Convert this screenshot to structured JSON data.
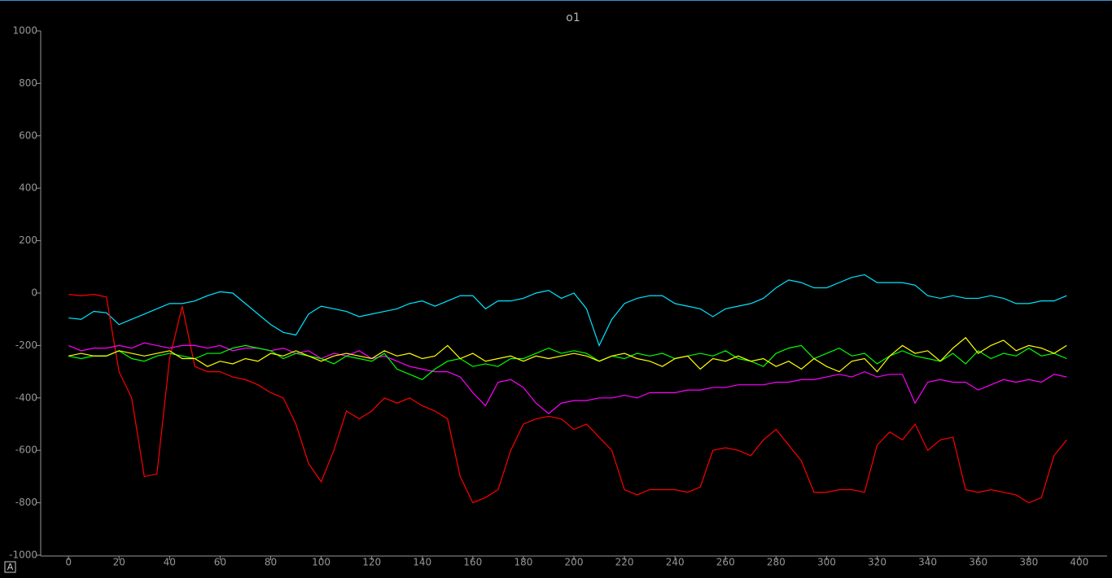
{
  "chart_data": {
    "type": "line",
    "title": "o1",
    "x": [
      0,
      5,
      10,
      15,
      20,
      25,
      30,
      35,
      40,
      45,
      50,
      55,
      60,
      65,
      70,
      75,
      80,
      85,
      90,
      95,
      100,
      105,
      110,
      115,
      120,
      125,
      130,
      135,
      140,
      145,
      150,
      155,
      160,
      165,
      170,
      175,
      180,
      185,
      190,
      195,
      200,
      205,
      210,
      215,
      220,
      225,
      230,
      235,
      240,
      245,
      250,
      255,
      260,
      265,
      270,
      275,
      280,
      285,
      290,
      295,
      300,
      305,
      310,
      315,
      320,
      325,
      330,
      335,
      340,
      345,
      350,
      355,
      360,
      365,
      370,
      375,
      380,
      385,
      390,
      395
    ],
    "series": [
      {
        "color": "#00e5ff",
        "values": [
          -95,
          -100,
          -70,
          -75,
          -120,
          -100,
          -80,
          -60,
          -40,
          -40,
          -30,
          -10,
          5,
          0,
          -40,
          -80,
          -120,
          -150,
          -160,
          -80,
          -50,
          -60,
          -70,
          -90,
          -80,
          -70,
          -60,
          -40,
          -30,
          -50,
          -30,
          -10,
          -10,
          -60,
          -30,
          -30,
          -20,
          0,
          10,
          -20,
          0,
          -60,
          -200,
          -100,
          -40,
          -20,
          -10,
          -10,
          -40,
          -50,
          -60,
          -90,
          -60,
          -50,
          -40,
          -20,
          20,
          50,
          40,
          20,
          20,
          40,
          60,
          70,
          40,
          40,
          40,
          30,
          -10,
          -20,
          -10,
          -20,
          -20,
          -10,
          -20,
          -40,
          -40,
          -30,
          -30,
          -10
        ]
      },
      {
        "color": "#ff0000",
        "values": [
          -5,
          -10,
          -5,
          -15,
          -300,
          -400,
          -700,
          -690,
          -250,
          -50,
          -280,
          -300,
          -300,
          -320,
          -330,
          -350,
          -380,
          -400,
          -500,
          -650,
          -720,
          -600,
          -450,
          -480,
          -450,
          -400,
          -420,
          -400,
          -430,
          -450,
          -480,
          -700,
          -800,
          -780,
          -750,
          -600,
          -500,
          -480,
          -470,
          -480,
          -520,
          -500,
          -550,
          -600,
          -750,
          -770,
          -750,
          -750,
          -750,
          -760,
          -740,
          -600,
          -590,
          -600,
          -620,
          -560,
          -520,
          -580,
          -640,
          -760,
          -760,
          -750,
          -750,
          -760,
          -580,
          -530,
          -560,
          -500,
          -600,
          -560,
          -550,
          -750,
          -760,
          -750,
          -760,
          -770,
          -800,
          -780,
          -620,
          -560
        ]
      },
      {
        "color": "#ff00ff",
        "values": [
          -200,
          -220,
          -210,
          -210,
          -200,
          -210,
          -190,
          -200,
          -210,
          -200,
          -200,
          -210,
          -200,
          -220,
          -210,
          -210,
          -220,
          -210,
          -230,
          -220,
          -250,
          -230,
          -240,
          -220,
          -250,
          -240,
          -260,
          -280,
          -290,
          -300,
          -300,
          -320,
          -380,
          -430,
          -340,
          -330,
          -360,
          -420,
          -460,
          -420,
          -410,
          -410,
          -400,
          -400,
          -390,
          -400,
          -380,
          -380,
          -380,
          -370,
          -370,
          -360,
          -360,
          -350,
          -350,
          -350,
          -340,
          -340,
          -330,
          -330,
          -320,
          -310,
          -320,
          -300,
          -320,
          -310,
          -310,
          -420,
          -340,
          -330,
          -340,
          -340,
          -370,
          -350,
          -330,
          -340,
          -330,
          -340,
          -310,
          -320
        ]
      },
      {
        "color": "#00ff00",
        "values": [
          -240,
          -250,
          -240,
          -240,
          -220,
          -250,
          -260,
          -240,
          -230,
          -240,
          -250,
          -230,
          -230,
          -210,
          -200,
          -210,
          -220,
          -250,
          -230,
          -240,
          -250,
          -270,
          -240,
          -250,
          -260,
          -230,
          -290,
          -310,
          -330,
          -290,
          -260,
          -250,
          -280,
          -270,
          -280,
          -250,
          -250,
          -230,
          -210,
          -230,
          -220,
          -230,
          -260,
          -240,
          -250,
          -230,
          -240,
          -230,
          -250,
          -240,
          -230,
          -240,
          -220,
          -250,
          -260,
          -280,
          -230,
          -210,
          -200,
          -250,
          -230,
          -210,
          -240,
          -230,
          -270,
          -240,
          -220,
          -240,
          -250,
          -260,
          -230,
          -270,
          -220,
          -250,
          -230,
          -240,
          -210,
          -240,
          -230,
          -250
        ]
      },
      {
        "color": "#ffff00",
        "values": [
          -240,
          -230,
          -240,
          -240,
          -220,
          -230,
          -240,
          -230,
          -220,
          -250,
          -250,
          -280,
          -260,
          -270,
          -250,
          -260,
          -230,
          -240,
          -220,
          -240,
          -260,
          -240,
          -230,
          -240,
          -250,
          -220,
          -240,
          -230,
          -250,
          -240,
          -200,
          -250,
          -230,
          -260,
          -250,
          -240,
          -260,
          -240,
          -250,
          -240,
          -230,
          -240,
          -260,
          -240,
          -230,
          -250,
          -260,
          -280,
          -250,
          -240,
          -290,
          -250,
          -260,
          -240,
          -260,
          -250,
          -280,
          -260,
          -290,
          -250,
          -280,
          -300,
          -260,
          -250,
          -300,
          -240,
          -200,
          -230,
          -220,
          -260,
          -210,
          -170,
          -230,
          -200,
          -180,
          -220,
          -200,
          -210,
          -230,
          -200
        ]
      }
    ],
    "xlim": [
      -11,
      411
    ],
    "ylim": [
      -1000,
      1000
    ],
    "xticks": [
      0,
      20,
      40,
      60,
      80,
      100,
      120,
      140,
      160,
      180,
      200,
      220,
      240,
      260,
      280,
      300,
      320,
      340,
      360,
      380,
      400
    ],
    "yticks": [
      -1000,
      -800,
      -600,
      -400,
      -200,
      0,
      200,
      400,
      600,
      800,
      1000
    ]
  },
  "autoscale_button": "A"
}
